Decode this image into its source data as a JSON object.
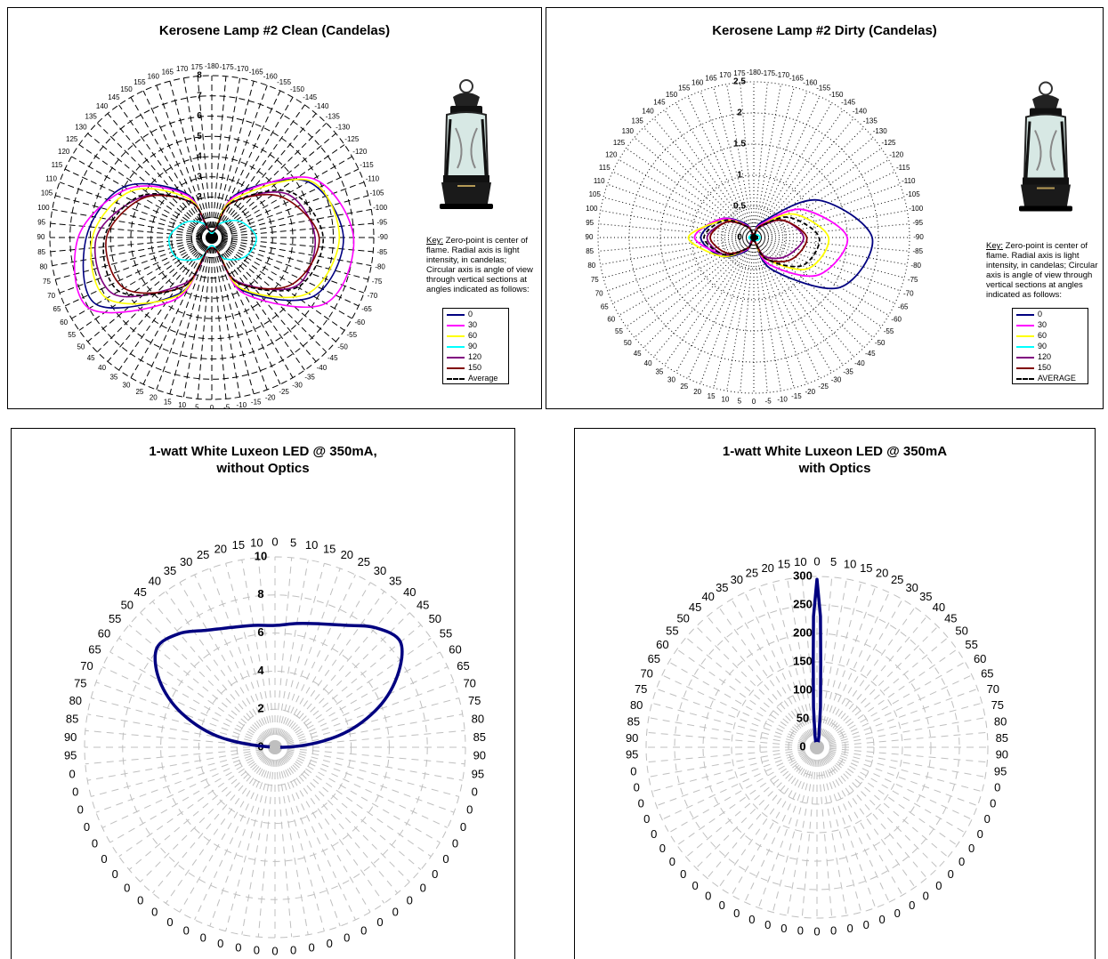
{
  "chart_data": [
    {
      "type": "polar-line",
      "title": "Kerosene Lamp #2 Clean (Candelas)",
      "radial_axis_ticks": [
        "0",
        "1",
        "2",
        "3",
        "4",
        "5",
        "6",
        "7",
        "8"
      ],
      "rmax": 8,
      "angle_labels": [
        "-180",
        "-175",
        "-170",
        "-165",
        "-160",
        "-155",
        "-150",
        "-145",
        "-140",
        "-135",
        "-130",
        "-125",
        "-120",
        "-115",
        "-110",
        "-105",
        "-100",
        "-95",
        "-90",
        "-85",
        "-80",
        "-75",
        "-70",
        "-65",
        "-60",
        "-55",
        "-50",
        "-45",
        "-40",
        "-35",
        "-30",
        "-25",
        "-20",
        "-15",
        "-10",
        "-5",
        "0",
        "5",
        "10",
        "15",
        "20",
        "25",
        "30",
        "35",
        "40",
        "45",
        "50",
        "55",
        "60",
        "65",
        "70",
        "75",
        "80",
        "85",
        "90",
        "95",
        "100",
        "105",
        "110",
        "115",
        "120",
        "125",
        "130",
        "135",
        "140",
        "145",
        "150",
        "155",
        "160",
        "165",
        "170",
        "175",
        "180"
      ],
      "theta": [
        0,
        30,
        60,
        90,
        120,
        150,
        180,
        210,
        240,
        270,
        300,
        330
      ],
      "series": [
        {
          "name": "0",
          "color": "#000080",
          "r": [
            0.3,
            2.5,
            5.5,
            6.5,
            5.8,
            3.0,
            0.5,
            3.2,
            6.6,
            6.2,
            5.0,
            2.5
          ]
        },
        {
          "name": "30",
          "color": "#ff00ff",
          "r": [
            0.3,
            2.4,
            5.8,
            7.0,
            6.5,
            3.2,
            0.5,
            3.5,
            7.0,
            6.6,
            4.8,
            2.4
          ]
        },
        {
          "name": "60",
          "color": "#ffff00",
          "r": [
            0.3,
            2.2,
            5.6,
            6.3,
            5.5,
            2.9,
            0.5,
            3.3,
            6.0,
            5.9,
            4.6,
            2.2
          ]
        },
        {
          "name": "90",
          "color": "#00ffff",
          "r": [
            0.2,
            0.8,
            1.6,
            2.2,
            1.9,
            1.2,
            0.4,
            1.2,
            2.0,
            2.1,
            1.5,
            0.8
          ]
        },
        {
          "name": "120",
          "color": "#800080",
          "r": [
            0.3,
            2.0,
            4.3,
            5.1,
            4.8,
            2.5,
            0.5,
            2.6,
            5.6,
            5.7,
            4.0,
            2.0
          ]
        },
        {
          "name": "150",
          "color": "#800000",
          "r": [
            0.3,
            2.0,
            4.0,
            5.3,
            4.6,
            2.6,
            0.5,
            2.8,
            5.0,
            5.2,
            3.9,
            2.0
          ]
        },
        {
          "name": "Average",
          "color": "#000000",
          "dashed": true,
          "r": [
            0.3,
            2.0,
            4.5,
            5.5,
            4.9,
            2.6,
            0.5,
            2.8,
            5.3,
            5.3,
            4.1,
            2.0
          ]
        }
      ]
    },
    {
      "type": "polar-line",
      "title": "Kerosene Lamp #2 Dirty (Candelas)",
      "radial_axis_ticks": [
        "0",
        "0.5",
        "1",
        "1.5",
        "2",
        "2.5"
      ],
      "rmax": 2.5,
      "angle_labels": [
        "-180",
        "-175",
        "-170",
        "-165",
        "-160",
        "-155",
        "-150",
        "-145",
        "-140",
        "-135",
        "-130",
        "-125",
        "-120",
        "-115",
        "-110",
        "-105",
        "-100",
        "-95",
        "-90",
        "-85",
        "-80",
        "-75",
        "-70",
        "-65",
        "-60",
        "-55",
        "-50",
        "-45",
        "-40",
        "-35",
        "-30",
        "-25",
        "-20",
        "-15",
        "-10",
        "-5",
        "0",
        "5",
        "10",
        "15",
        "20",
        "25",
        "30",
        "35",
        "40",
        "45",
        "50",
        "55",
        "60",
        "65",
        "70",
        "75",
        "80",
        "85",
        "90",
        "95",
        "100",
        "105",
        "110",
        "115",
        "120",
        "125",
        "130",
        "135",
        "140",
        "145",
        "150",
        "155",
        "160",
        "165",
        "170",
        "175",
        "180"
      ],
      "theta": [
        0,
        30,
        60,
        90,
        120,
        150,
        180,
        210,
        240,
        270,
        300,
        330
      ],
      "series": [
        {
          "name": "0",
          "color": "#000080",
          "r": [
            0.05,
            0.3,
            1.2,
            1.9,
            1.6,
            0.6,
            0.05,
            0.25,
            0.6,
            0.85,
            0.6,
            0.25
          ]
        },
        {
          "name": "30",
          "color": "#ff00ff",
          "r": [
            0.05,
            0.25,
            0.9,
            1.5,
            1.2,
            0.5,
            0.05,
            0.22,
            0.55,
            0.95,
            0.6,
            0.22
          ]
        },
        {
          "name": "60",
          "color": "#ffff00",
          "r": [
            0.05,
            0.22,
            0.75,
            1.2,
            1.0,
            0.4,
            0.05,
            0.2,
            0.6,
            1.05,
            0.55,
            0.2
          ]
        },
        {
          "name": "90",
          "color": "#00ffff",
          "r": [
            0.03,
            0.05,
            0.08,
            0.1,
            0.08,
            0.05,
            0.03,
            0.04,
            0.06,
            0.08,
            0.06,
            0.04
          ]
        },
        {
          "name": "120",
          "color": "#800080",
          "r": [
            0.05,
            0.2,
            0.55,
            0.8,
            0.6,
            0.35,
            0.05,
            0.2,
            0.55,
            0.75,
            0.5,
            0.2
          ]
        },
        {
          "name": "150",
          "color": "#800000",
          "r": [
            0.05,
            0.22,
            0.55,
            0.85,
            0.7,
            0.4,
            0.05,
            0.2,
            0.5,
            0.7,
            0.5,
            0.2
          ]
        },
        {
          "name": "AVERAGE",
          "color": "#000000",
          "dashed": true,
          "r": [
            0.05,
            0.2,
            0.65,
            1.05,
            0.9,
            0.4,
            0.05,
            0.2,
            0.55,
            0.8,
            0.55,
            0.2
          ]
        }
      ]
    },
    {
      "type": "polar-line",
      "title": "1-watt White Luxeon LED @ 350mA,\nwithout Optics",
      "radial_axis_ticks": [
        "0",
        "2",
        "4",
        "6",
        "8",
        "10"
      ],
      "rmax": 10,
      "angle_labels": [
        "0",
        "5",
        "10",
        "15",
        "20",
        "25",
        "30",
        "35",
        "40",
        "45",
        "50",
        "55",
        "60",
        "65",
        "70",
        "75",
        "80",
        "85",
        "90",
        "95",
        "0",
        "0",
        "0",
        "0",
        "0",
        "0",
        "0",
        "0",
        "0",
        "0",
        "0",
        "0",
        "0",
        "0",
        "0",
        "0",
        "0",
        "0",
        "0",
        "0",
        "0",
        "0",
        "0",
        "0",
        "0",
        "0",
        "0",
        "0",
        "0",
        "0",
        "0",
        "0",
        "95",
        "90",
        "85",
        "80",
        "75",
        "70",
        "65",
        "60",
        "55",
        "50",
        "45",
        "40",
        "35",
        "30",
        "25",
        "20",
        "15",
        "10",
        "5"
      ],
      "theta": [
        0,
        10,
        20,
        30,
        40,
        50,
        60,
        70,
        80,
        90,
        280,
        290,
        300,
        310,
        320,
        330,
        340,
        350
      ],
      "series": [
        {
          "name": "",
          "color": "#000080",
          "r": [
            6.4,
            6.6,
            6.9,
            7.4,
            8.2,
            8.6,
            7.4,
            5.6,
            3.3,
            0.4,
            2.8,
            5.2,
            7.0,
            8.1,
            7.8,
            7.1,
            6.7,
            6.5
          ]
        }
      ]
    },
    {
      "type": "polar-line",
      "title": "1-watt White Luxeon LED @ 350mA\nwith Optics",
      "radial_axis_ticks": [
        "0",
        "50",
        "100",
        "150",
        "200",
        "250",
        "300"
      ],
      "rmax": 300,
      "angle_labels": [
        "0",
        "5",
        "10",
        "15",
        "20",
        "25",
        "30",
        "35",
        "40",
        "45",
        "50",
        "55",
        "60",
        "65",
        "70",
        "75",
        "80",
        "85",
        "90",
        "95",
        "0",
        "0",
        "0",
        "0",
        "0",
        "0",
        "0",
        "0",
        "0",
        "0",
        "0",
        "0",
        "0",
        "0",
        "0",
        "0",
        "0",
        "0",
        "0",
        "0",
        "0",
        "0",
        "0",
        "0",
        "0",
        "0",
        "0",
        "0",
        "0",
        "0",
        "0",
        "0",
        "95",
        "90",
        "85",
        "80",
        "75",
        "70",
        "65",
        "60",
        "55",
        "50",
        "45",
        "40",
        "35",
        "30",
        "25",
        "20",
        "15",
        "10",
        "5"
      ],
      "theta": [
        0,
        1.5,
        2.5,
        5,
        10,
        20,
        340,
        350,
        355,
        357.5,
        358.5
      ],
      "series": [
        {
          "name": "",
          "color": "#000080",
          "r": [
            295,
            230,
            150,
            70,
            20,
            4,
            4,
            20,
            70,
            150,
            230
          ]
        }
      ]
    }
  ],
  "key_note": {
    "key_label": "Key:",
    "text": " Zero-point is center of flame.  Radial axis is light intensity, in candelas; Circular axis is angle of view through vertical sections at angles indicated as follows:"
  },
  "legend_clean": [
    "0",
    "30",
    "60",
    "90",
    "120",
    "150",
    "Average"
  ],
  "legend_dirty": [
    "0",
    "30",
    "60",
    "90",
    "120",
    "150",
    "AVERAGE"
  ],
  "icon": "kerosene-lantern"
}
